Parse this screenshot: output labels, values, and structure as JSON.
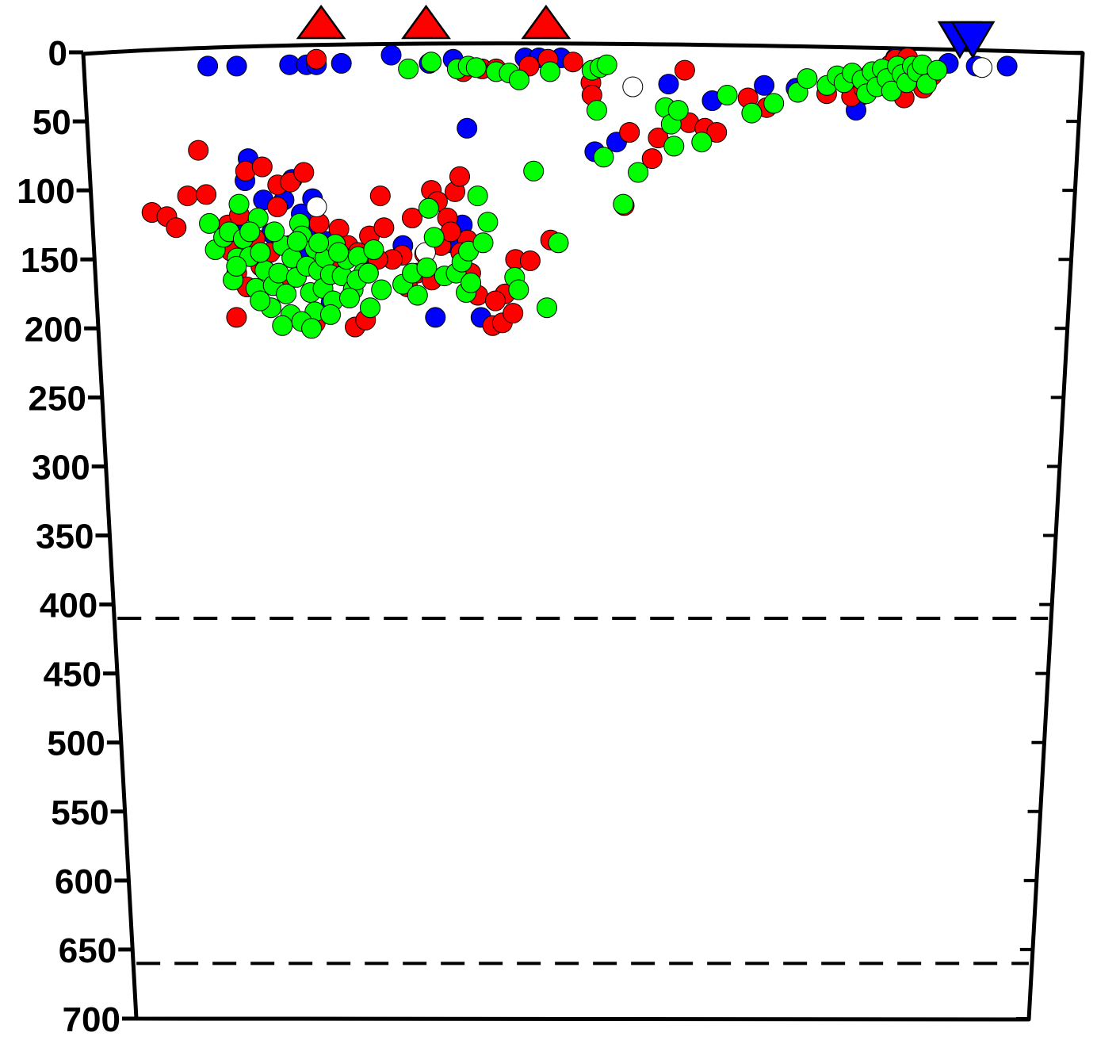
{
  "chart_data": {
    "type": "scatter",
    "title": "",
    "xlabel": "",
    "ylabel": "",
    "ylim": [
      0,
      700
    ],
    "y_axis_inverted": true,
    "y_ticks": [
      0,
      50,
      100,
      150,
      200,
      250,
      300,
      350,
      400,
      450,
      500,
      550,
      600,
      650,
      700
    ],
    "y_tick_labels": [
      "0",
      "50",
      "100",
      "150",
      "200",
      "250",
      "300",
      "350",
      "400",
      "450",
      "500",
      "550",
      "600",
      "650",
      "700"
    ],
    "xlim": [
      0,
      100
    ],
    "x_ticks_shown": false,
    "grid": false,
    "legend": "none",
    "reference_lines": [
      {
        "depth": 410,
        "style": "dashed"
      },
      {
        "depth": 660,
        "style": "dashed"
      }
    ],
    "surface_markers": [
      {
        "shape": "triangle-up",
        "color": "#ff0000",
        "x": 23.8
      },
      {
        "shape": "triangle-up",
        "color": "#ff0000",
        "x": 34.3
      },
      {
        "shape": "triangle-up",
        "color": "#ff0000",
        "x": 46.3
      },
      {
        "shape": "triangle-down",
        "color": "#0000ff",
        "x": 87.7
      },
      {
        "shape": "triangle-down",
        "color": "#0000ff",
        "x": 89.0
      }
    ],
    "colors": {
      "red": "#ff0000",
      "blue": "#0000ff",
      "green": "#00ff00",
      "open": "#ffffff"
    },
    "series": [
      {
        "color": "#0000ff",
        "points": [
          [
            12.4,
            10
          ],
          [
            15.3,
            10
          ],
          [
            20.6,
            9
          ],
          [
            22.3,
            9
          ],
          [
            23.3,
            9
          ],
          [
            25.8,
            8
          ],
          [
            30.8,
            2
          ],
          [
            34.6,
            8
          ],
          [
            37.0,
            5
          ],
          [
            44.2,
            4
          ],
          [
            45.6,
            4
          ],
          [
            47.8,
            4
          ],
          [
            58.6,
            23
          ],
          [
            63.0,
            35
          ],
          [
            68.2,
            24
          ],
          [
            71.4,
            26
          ],
          [
            78.0,
            31
          ],
          [
            77.5,
            42
          ],
          [
            81.3,
            4
          ],
          [
            82.4,
            5
          ],
          [
            86.6,
            8
          ],
          [
            89.4,
            10
          ],
          [
            92.5,
            10
          ],
          [
            38.3,
            55
          ],
          [
            51.2,
            72
          ],
          [
            53.4,
            65
          ],
          [
            16.1,
            77
          ],
          [
            15.7,
            93
          ],
          [
            17.5,
            107
          ],
          [
            20.5,
            92
          ],
          [
            19.6,
            107
          ],
          [
            22.5,
            106
          ],
          [
            21.3,
            117
          ],
          [
            14.6,
            128
          ],
          [
            18.2,
            131
          ],
          [
            23.8,
            137
          ],
          [
            27.6,
            147
          ],
          [
            31.6,
            140
          ],
          [
            36.3,
            138
          ],
          [
            37.7,
            125
          ],
          [
            24.1,
            181
          ],
          [
            34.8,
            192
          ],
          [
            39.5,
            192
          ],
          [
            22.0,
            132
          ],
          [
            21.5,
            142
          ]
        ]
      },
      {
        "color": "#ff0000",
        "points": [
          [
            23.3,
            5
          ],
          [
            38.0,
            14
          ],
          [
            39.9,
            12
          ],
          [
            41.3,
            12
          ],
          [
            44.6,
            10
          ],
          [
            46.5,
            5
          ],
          [
            49.0,
            7
          ],
          [
            50.8,
            22
          ],
          [
            50.9,
            31
          ],
          [
            54.7,
            58
          ],
          [
            57.6,
            62
          ],
          [
            57.0,
            77
          ],
          [
            60.2,
            13
          ],
          [
            60.7,
            51
          ],
          [
            62.3,
            55
          ],
          [
            63.5,
            58
          ],
          [
            54.2,
            111
          ],
          [
            66.6,
            33
          ],
          [
            68.5,
            40
          ],
          [
            74.5,
            30
          ],
          [
            77.0,
            32
          ],
          [
            78.2,
            26
          ],
          [
            78.9,
            15
          ],
          [
            79.8,
            18
          ],
          [
            80.8,
            9
          ],
          [
            81.3,
            5
          ],
          [
            82.3,
            33
          ],
          [
            82.5,
            4
          ],
          [
            84.2,
            26
          ],
          [
            85.0,
            17
          ],
          [
            6.1,
            116
          ],
          [
            7.6,
            119
          ],
          [
            8.5,
            127
          ],
          [
            9.8,
            104
          ],
          [
            11.1,
            71
          ],
          [
            11.7,
            103
          ],
          [
            14.3,
            192
          ],
          [
            15.8,
            86
          ],
          [
            17.5,
            83
          ],
          [
            19.0,
            96
          ],
          [
            20.3,
            94
          ],
          [
            21.7,
            87
          ],
          [
            18.9,
            112
          ],
          [
            22.4,
            196
          ],
          [
            23.1,
            124
          ],
          [
            25.1,
            128
          ],
          [
            26.5,
            199
          ],
          [
            27.6,
            194
          ],
          [
            28.2,
            133
          ],
          [
            29.4,
            104
          ],
          [
            29.7,
            127
          ],
          [
            31.5,
            147
          ],
          [
            32.6,
            120
          ],
          [
            33.8,
            146
          ],
          [
            34.6,
            100
          ],
          [
            35.2,
            108
          ],
          [
            36.2,
            120
          ],
          [
            37.0,
            101
          ],
          [
            37.5,
            90
          ],
          [
            38.2,
            136
          ],
          [
            39.2,
            176
          ],
          [
            40.7,
            198
          ],
          [
            41.7,
            196
          ],
          [
            42.0,
            175
          ],
          [
            42.8,
            189
          ],
          [
            43.1,
            150
          ],
          [
            44.6,
            151
          ],
          [
            46.7,
            136
          ],
          [
            14.0,
            144
          ],
          [
            14.5,
            160
          ],
          [
            15.5,
            170
          ],
          [
            17.0,
            155
          ],
          [
            19.5,
            165
          ],
          [
            26.0,
            140
          ],
          [
            28.0,
            160
          ],
          [
            30.5,
            150
          ],
          [
            33.0,
            160
          ],
          [
            35.5,
            140
          ],
          [
            36.5,
            130
          ],
          [
            13.8,
            125
          ],
          [
            15.0,
            118
          ],
          [
            16.5,
            135
          ],
          [
            18.0,
            145
          ],
          [
            20.0,
            140
          ],
          [
            25.0,
            150
          ],
          [
            27.0,
            145
          ],
          [
            29.0,
            150
          ],
          [
            32.0,
            170
          ],
          [
            34.5,
            165
          ],
          [
            37.5,
            145
          ],
          [
            38.5,
            160
          ],
          [
            41.0,
            180
          ]
        ]
      },
      {
        "color": "#00ff00",
        "points": [
          [
            32.5,
            12
          ],
          [
            34.8,
            7
          ],
          [
            37.4,
            12
          ],
          [
            38.5,
            10
          ],
          [
            39.3,
            11
          ],
          [
            41.3,
            14
          ],
          [
            42.6,
            15
          ],
          [
            43.6,
            20
          ],
          [
            46.7,
            14
          ],
          [
            50.9,
            13
          ],
          [
            51.7,
            11
          ],
          [
            52.4,
            9
          ],
          [
            51.4,
            42
          ],
          [
            52.1,
            76
          ],
          [
            54.1,
            110
          ],
          [
            55.6,
            87
          ],
          [
            58.3,
            40
          ],
          [
            58.9,
            52
          ],
          [
            59.2,
            68
          ],
          [
            59.6,
            42
          ],
          [
            62.0,
            65
          ],
          [
            64.5,
            31
          ],
          [
            67.0,
            44
          ],
          [
            69.2,
            37
          ],
          [
            71.6,
            29
          ],
          [
            72.5,
            19
          ],
          [
            74.5,
            24
          ],
          [
            75.5,
            17
          ],
          [
            76.2,
            22
          ],
          [
            77.0,
            15
          ],
          [
            78.0,
            20
          ],
          [
            78.5,
            30
          ],
          [
            79.0,
            14
          ],
          [
            79.5,
            25
          ],
          [
            80.0,
            12
          ],
          [
            80.5,
            19
          ],
          [
            81.0,
            28
          ],
          [
            81.5,
            10
          ],
          [
            82.0,
            16
          ],
          [
            82.5,
            22
          ],
          [
            83.0,
            10
          ],
          [
            83.5,
            14
          ],
          [
            84.0,
            9
          ],
          [
            84.5,
            23
          ],
          [
            85.5,
            13
          ],
          [
            45.0,
            86
          ],
          [
            47.5,
            138
          ],
          [
            46.3,
            185
          ],
          [
            11.9,
            124
          ],
          [
            12.4,
            143
          ],
          [
            13.3,
            134
          ],
          [
            13.9,
            130
          ],
          [
            14.1,
            165
          ],
          [
            14.6,
            149
          ],
          [
            15.3,
            135
          ],
          [
            15.9,
            148
          ],
          [
            16.4,
            171
          ],
          [
            16.9,
            120
          ],
          [
            17.4,
            158
          ],
          [
            17.9,
            185
          ],
          [
            18.2,
            169
          ],
          [
            18.8,
            160
          ],
          [
            19.3,
            140
          ],
          [
            19.5,
            175
          ],
          [
            19.9,
            190
          ],
          [
            20.2,
            149
          ],
          [
            20.6,
            163
          ],
          [
            21.1,
            124
          ],
          [
            21.3,
            133
          ],
          [
            21.7,
            155
          ],
          [
            22.0,
            174
          ],
          [
            22.4,
            188
          ],
          [
            22.6,
            142
          ],
          [
            22.9,
            158
          ],
          [
            23.3,
            171
          ],
          [
            23.6,
            149
          ],
          [
            24.1,
            161
          ],
          [
            24.3,
            180
          ],
          [
            24.7,
            139
          ],
          [
            25.3,
            162
          ],
          [
            25.8,
            150
          ],
          [
            26.4,
            172
          ],
          [
            27.0,
            148
          ],
          [
            27.5,
            160
          ],
          [
            28.1,
            185
          ],
          [
            28.6,
            143
          ],
          [
            29.3,
            172
          ],
          [
            31.5,
            168
          ],
          [
            32.5,
            160
          ],
          [
            33.0,
            176
          ],
          [
            34.0,
            156
          ],
          [
            34.8,
            134
          ],
          [
            34.3,
            113
          ],
          [
            35.8,
            162
          ],
          [
            37.0,
            160
          ],
          [
            37.6,
            152
          ],
          [
            38.0,
            174
          ],
          [
            38.5,
            167
          ],
          [
            38.3,
            144
          ],
          [
            39.3,
            104
          ],
          [
            39.8,
            138
          ],
          [
            40.3,
            123
          ],
          [
            43.0,
            163
          ],
          [
            43.4,
            172
          ],
          [
            15.0,
            110
          ],
          [
            16.0,
            130
          ],
          [
            17.0,
            145
          ],
          [
            18.5,
            130
          ],
          [
            20.8,
            137
          ],
          [
            23.0,
            138
          ],
          [
            25.0,
            145
          ],
          [
            26.8,
            165
          ],
          [
            28.0,
            160
          ],
          [
            14.5,
            155
          ],
          [
            16.8,
            180
          ],
          [
            19.0,
            198
          ],
          [
            21.0,
            195
          ],
          [
            22.0,
            200
          ],
          [
            24.0,
            190
          ],
          [
            26.0,
            178
          ]
        ]
      },
      {
        "color": "#ffffff",
        "points": [
          [
            55.0,
            25
          ],
          [
            22.9,
            112
          ],
          [
            33.9,
            145
          ],
          [
            90.0,
            11
          ]
        ]
      }
    ]
  }
}
